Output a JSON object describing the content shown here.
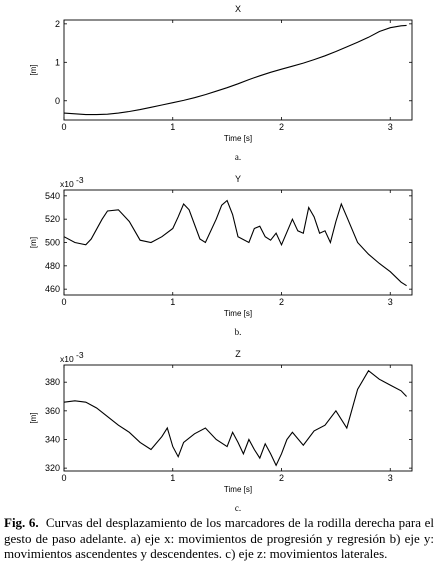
{
  "chart_data": [
    {
      "type": "line",
      "title": "X",
      "xlabel": "Time [s]",
      "ylabel": "[m]",
      "sublabel": "a.",
      "xlim": [
        0,
        3.2
      ],
      "ylim": [
        -0.5,
        2.1
      ],
      "xticks": [
        0,
        1,
        2,
        3
      ],
      "yticks": [
        0,
        1,
        2
      ],
      "xtick_labels": [
        "0",
        "1",
        "2",
        "3"
      ],
      "ytick_labels": [
        "0",
        "1",
        "2"
      ],
      "series": [
        {
          "x": [
            0,
            0.1,
            0.2,
            0.3,
            0.4,
            0.5,
            0.6,
            0.7,
            0.8,
            0.9,
            1.0,
            1.1,
            1.2,
            1.3,
            1.4,
            1.5,
            1.6,
            1.7,
            1.8,
            1.9,
            2.0,
            2.1,
            2.2,
            2.3,
            2.4,
            2.5,
            2.6,
            2.7,
            2.8,
            2.9,
            3.0,
            3.1,
            3.15
          ],
          "y": [
            -0.32,
            -0.34,
            -0.36,
            -0.36,
            -0.35,
            -0.32,
            -0.28,
            -0.23,
            -0.17,
            -0.11,
            -0.05,
            0.01,
            0.08,
            0.16,
            0.25,
            0.34,
            0.44,
            0.55,
            0.65,
            0.74,
            0.82,
            0.9,
            0.98,
            1.07,
            1.17,
            1.28,
            1.4,
            1.52,
            1.65,
            1.8,
            1.9,
            1.95,
            1.96
          ]
        }
      ]
    },
    {
      "type": "line",
      "title": "Y",
      "xlabel": "Time [s]",
      "ylabel": "[m]",
      "sublabel": "b.",
      "multiplier": "x10",
      "multiplier_exp": "-3",
      "xlim": [
        0,
        3.2
      ],
      "ylim": [
        455,
        545
      ],
      "xticks": [
        0,
        1,
        2,
        3
      ],
      "yticks": [
        460,
        480,
        500,
        520,
        540
      ],
      "xtick_labels": [
        "0",
        "1",
        "2",
        "3"
      ],
      "ytick_labels": [
        "460",
        "480",
        "500",
        "520",
        "540"
      ],
      "series": [
        {
          "x": [
            0,
            0.1,
            0.2,
            0.25,
            0.35,
            0.4,
            0.5,
            0.6,
            0.7,
            0.8,
            0.9,
            1.0,
            1.05,
            1.1,
            1.15,
            1.25,
            1.3,
            1.4,
            1.45,
            1.5,
            1.55,
            1.6,
            1.7,
            1.75,
            1.8,
            1.85,
            1.9,
            1.95,
            2.0,
            2.1,
            2.15,
            2.2,
            2.25,
            2.3,
            2.35,
            2.4,
            2.45,
            2.5,
            2.55,
            2.6,
            2.7,
            2.8,
            2.9,
            3.0,
            3.1,
            3.15
          ],
          "y": [
            505,
            500,
            498,
            503,
            520,
            527,
            528,
            518,
            502,
            500,
            505,
            512,
            522,
            533,
            528,
            503,
            500,
            520,
            532,
            536,
            524,
            505,
            500,
            512,
            514,
            505,
            502,
            508,
            498,
            520,
            510,
            508,
            530,
            522,
            508,
            510,
            500,
            518,
            533,
            522,
            500,
            490,
            482,
            475,
            466,
            463
          ]
        }
      ]
    },
    {
      "type": "line",
      "title": "Z",
      "xlabel": "Time [s]",
      "ylabel": "[m]",
      "sublabel": "c.",
      "multiplier": "x10",
      "multiplier_exp": "-3",
      "xlim": [
        0,
        3.2
      ],
      "ylim": [
        318,
        392
      ],
      "xticks": [
        0,
        1,
        2,
        3
      ],
      "yticks": [
        320,
        340,
        360,
        380
      ],
      "xtick_labels": [
        "0",
        "1",
        "2",
        "3"
      ],
      "ytick_labels": [
        "320",
        "340",
        "360",
        "380"
      ],
      "series": [
        {
          "x": [
            0,
            0.1,
            0.2,
            0.3,
            0.4,
            0.5,
            0.6,
            0.7,
            0.8,
            0.9,
            0.95,
            1.0,
            1.05,
            1.1,
            1.2,
            1.3,
            1.4,
            1.5,
            1.55,
            1.6,
            1.65,
            1.7,
            1.75,
            1.8,
            1.85,
            1.9,
            1.95,
            2.0,
            2.05,
            2.1,
            2.2,
            2.3,
            2.4,
            2.5,
            2.6,
            2.7,
            2.8,
            2.9,
            3.0,
            3.1,
            3.15
          ],
          "y": [
            366,
            367,
            366,
            362,
            356,
            350,
            345,
            338,
            333,
            342,
            348,
            335,
            328,
            338,
            344,
            348,
            340,
            335,
            345,
            338,
            330,
            340,
            333,
            327,
            337,
            330,
            322,
            330,
            340,
            345,
            336,
            346,
            350,
            360,
            348,
            375,
            388,
            382,
            378,
            374,
            370
          ]
        }
      ]
    }
  ],
  "caption": {
    "label": "Fig. 6.",
    "text": "Curvas del desplazamiento de los marcadores de la rodilla derecha para el gesto de paso adelante. a) eje x: movimientos de progresión y regresión b) eje y: movimientos ascendentes y descendentes. c) eje z: movimientos laterales."
  }
}
